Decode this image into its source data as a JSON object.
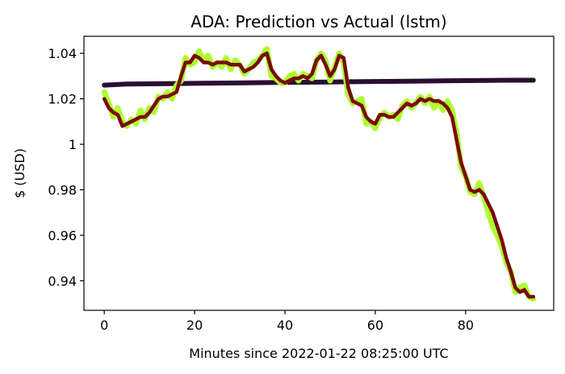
{
  "chart_data": {
    "type": "line",
    "title": "ADA: Prediction vs Actual (lstm)",
    "xlabel": "Minutes since 2022-01-22 08:25:00 UTC",
    "ylabel": "$ (USD)",
    "xlim": [
      -4.5,
      99.5
    ],
    "ylim": [
      0.927,
      1.0475
    ],
    "xticks": [
      0,
      20,
      40,
      60,
      80
    ],
    "yticks": [
      {
        "value": 0.94,
        "label": "0.94"
      },
      {
        "value": 0.96,
        "label": "0.96"
      },
      {
        "value": 0.98,
        "label": "0.98"
      },
      {
        "value": 1.0,
        "label": "1"
      },
      {
        "value": 1.02,
        "label": "1.02"
      },
      {
        "value": 1.04,
        "label": "1.04"
      }
    ],
    "grid": false,
    "legend": "none",
    "colors": {
      "actual": "#adff2f",
      "smoothed": "#7a0a0a",
      "prediction": "#2b0f33"
    },
    "series": [
      {
        "key": "actual",
        "x": [
          0,
          1,
          2,
          3,
          4,
          5,
          6,
          7,
          8,
          9,
          10,
          11,
          12,
          13,
          14,
          15,
          16,
          17,
          18,
          19,
          20,
          21,
          22,
          23,
          24,
          25,
          26,
          27,
          28,
          29,
          30,
          31,
          32,
          33,
          34,
          35,
          36,
          37,
          38,
          39,
          40,
          41,
          42,
          43,
          44,
          45,
          46,
          47,
          48,
          49,
          50,
          51,
          52,
          53,
          54,
          55,
          56,
          57,
          58,
          59,
          60,
          61,
          62,
          63,
          64,
          65,
          66,
          67,
          68,
          69,
          70,
          71,
          72,
          73,
          74,
          75,
          76,
          77,
          78,
          79,
          80,
          81,
          82,
          83,
          84,
          85,
          86,
          87,
          88,
          89,
          90,
          91,
          92,
          93,
          94,
          95
        ],
        "y": [
          1.023,
          1.018,
          1.012,
          1.016,
          1.01,
          1.008,
          1.011,
          1.009,
          1.015,
          1.011,
          1.016,
          1.014,
          1.021,
          1.02,
          1.023,
          1.02,
          1.026,
          1.028,
          1.038,
          1.035,
          1.036,
          1.041,
          1.037,
          1.039,
          1.034,
          1.036,
          1.034,
          1.038,
          1.033,
          1.037,
          1.035,
          1.031,
          1.033,
          1.036,
          1.037,
          1.039,
          1.042,
          1.03,
          1.029,
          1.027,
          1.027,
          1.03,
          1.031,
          1.028,
          1.031,
          1.03,
          1.029,
          1.037,
          1.04,
          1.037,
          1.028,
          1.034,
          1.04,
          1.036,
          1.022,
          1.018,
          1.019,
          1.02,
          1.009,
          1.01,
          1.007,
          1.012,
          1.014,
          1.012,
          1.013,
          1.011,
          1.017,
          1.019,
          1.016,
          1.018,
          1.021,
          1.018,
          1.021,
          1.016,
          1.019,
          1.015,
          1.019,
          1.015,
          1.005,
          0.99,
          0.986,
          0.979,
          0.978,
          0.983,
          0.977,
          0.97,
          0.964,
          0.96,
          0.955,
          0.948,
          0.944,
          0.935,
          0.937,
          0.938,
          0.933,
          0.932
        ]
      },
      {
        "key": "smoothed",
        "x": [
          0,
          1,
          2,
          3,
          4,
          5,
          6,
          7,
          8,
          9,
          10,
          11,
          12,
          13,
          14,
          15,
          16,
          17,
          18,
          19,
          20,
          21,
          22,
          23,
          24,
          25,
          26,
          27,
          28,
          29,
          30,
          31,
          32,
          33,
          34,
          35,
          36,
          37,
          38,
          39,
          40,
          41,
          42,
          43,
          44,
          45,
          46,
          47,
          48,
          49,
          50,
          51,
          52,
          53,
          54,
          55,
          56,
          57,
          58,
          59,
          60,
          61,
          62,
          63,
          64,
          65,
          66,
          67,
          68,
          69,
          70,
          71,
          72,
          73,
          74,
          75,
          76,
          77,
          78,
          79,
          80,
          81,
          82,
          83,
          84,
          85,
          86,
          87,
          88,
          89,
          90,
          91,
          92,
          93,
          94,
          95
        ],
        "y": [
          1.02,
          1.016,
          1.014,
          1.013,
          1.008,
          1.009,
          1.01,
          1.011,
          1.012,
          1.012,
          1.014,
          1.017,
          1.02,
          1.021,
          1.021,
          1.022,
          1.023,
          1.03,
          1.036,
          1.036,
          1.039,
          1.038,
          1.036,
          1.036,
          1.035,
          1.036,
          1.036,
          1.036,
          1.035,
          1.035,
          1.035,
          1.032,
          1.033,
          1.034,
          1.036,
          1.039,
          1.04,
          1.033,
          1.03,
          1.028,
          1.027,
          1.028,
          1.029,
          1.029,
          1.03,
          1.029,
          1.031,
          1.037,
          1.039,
          1.035,
          1.03,
          1.033,
          1.039,
          1.038,
          1.025,
          1.019,
          1.018,
          1.017,
          1.012,
          1.01,
          1.009,
          1.013,
          1.013,
          1.012,
          1.012,
          1.014,
          1.016,
          1.018,
          1.017,
          1.018,
          1.02,
          1.019,
          1.02,
          1.019,
          1.019,
          1.018,
          1.016,
          1.012,
          1.002,
          0.992,
          0.986,
          0.98,
          0.979,
          0.98,
          0.978,
          0.974,
          0.97,
          0.964,
          0.958,
          0.95,
          0.944,
          0.937,
          0.935,
          0.936,
          0.933,
          0.933
        ]
      },
      {
        "key": "prediction",
        "x": [
          0,
          5,
          10,
          15,
          20,
          25,
          30,
          35,
          40,
          45,
          50,
          55,
          60,
          65,
          70,
          75,
          80,
          85,
          90,
          95
        ],
        "y": [
          1.026,
          1.0265,
          1.0266,
          1.0267,
          1.0268,
          1.0269,
          1.027,
          1.0271,
          1.0272,
          1.0273,
          1.0274,
          1.0275,
          1.0276,
          1.0277,
          1.0278,
          1.0279,
          1.028,
          1.0281,
          1.0282,
          1.0282
        ]
      }
    ]
  }
}
